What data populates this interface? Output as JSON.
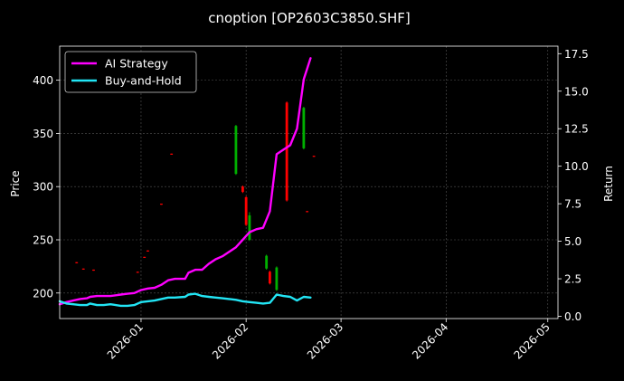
{
  "chart_data": {
    "type": "line",
    "title": "cnoption [OP2603C3850.SHF]",
    "ylabel_left": "Price",
    "ylabel_right": "Return",
    "x_ticks": [
      "2026-01",
      "2026-02",
      "2026-03",
      "2026-04",
      "2026-05"
    ],
    "x_tick_dates": [
      "2026-01-01",
      "2026-02-01",
      "2026-03-01",
      "2026-04-01",
      "2026-05-01"
    ],
    "xlim": [
      "2025-12-08",
      "2026-05-04"
    ],
    "ylim_left": [
      176,
      432
    ],
    "yticks_left": [
      200,
      250,
      300,
      350,
      400
    ],
    "ylim_right": [
      -0.15,
      18
    ],
    "yticks_right": [
      "0.0",
      "2.5",
      "5.0",
      "7.5",
      "10.0",
      "12.5",
      "15.0",
      "17.5"
    ],
    "ytick_values_right": [
      0,
      2.5,
      5,
      7.5,
      10,
      12.5,
      15,
      17.5
    ],
    "grid": true,
    "legend_position": "top-left",
    "series": [
      {
        "name": "AI Strategy",
        "color": "#ff00ff",
        "axis": "right",
        "points": [
          [
            "2025-12-08",
            0.8
          ],
          [
            "2025-12-10",
            0.95
          ],
          [
            "2025-12-12",
            1.05
          ],
          [
            "2025-12-14",
            1.15
          ],
          [
            "2025-12-16",
            1.2
          ],
          [
            "2025-12-17",
            1.3
          ],
          [
            "2025-12-19",
            1.35
          ],
          [
            "2025-12-21",
            1.35
          ],
          [
            "2025-12-23",
            1.35
          ],
          [
            "2025-12-26",
            1.45
          ],
          [
            "2025-12-28",
            1.5
          ],
          [
            "2025-12-30",
            1.55
          ],
          [
            "2026-01-01",
            1.75
          ],
          [
            "2026-01-03",
            1.85
          ],
          [
            "2026-01-05",
            1.9
          ],
          [
            "2026-01-07",
            2.1
          ],
          [
            "2026-01-09",
            2.4
          ],
          [
            "2026-01-11",
            2.5
          ],
          [
            "2026-01-14",
            2.5
          ],
          [
            "2026-01-15",
            2.9
          ],
          [
            "2026-01-17",
            3.1
          ],
          [
            "2026-01-19",
            3.1
          ],
          [
            "2026-01-21",
            3.5
          ],
          [
            "2026-01-23",
            3.8
          ],
          [
            "2026-01-25",
            4.0
          ],
          [
            "2026-01-27",
            4.3
          ],
          [
            "2026-01-29",
            4.6
          ],
          [
            "2026-01-31",
            5.1
          ],
          [
            "2026-02-02",
            5.6
          ],
          [
            "2026-02-04",
            5.8
          ],
          [
            "2026-02-06",
            5.9
          ],
          [
            "2026-02-08",
            7.0
          ],
          [
            "2026-02-10",
            10.8
          ],
          [
            "2026-02-12",
            11.1
          ],
          [
            "2026-02-14",
            11.4
          ],
          [
            "2026-02-16",
            12.5
          ],
          [
            "2026-02-18",
            15.8
          ],
          [
            "2026-02-20",
            17.2
          ]
        ]
      },
      {
        "name": "Buy-and-Hold",
        "color": "#22e5f5",
        "axis": "right",
        "points": [
          [
            "2025-12-08",
            1.0
          ],
          [
            "2025-12-10",
            0.85
          ],
          [
            "2025-12-12",
            0.8
          ],
          [
            "2025-12-14",
            0.75
          ],
          [
            "2025-12-16",
            0.75
          ],
          [
            "2025-12-17",
            0.85
          ],
          [
            "2025-12-19",
            0.75
          ],
          [
            "2025-12-21",
            0.75
          ],
          [
            "2025-12-23",
            0.8
          ],
          [
            "2025-12-26",
            0.7
          ],
          [
            "2025-12-28",
            0.7
          ],
          [
            "2025-12-30",
            0.75
          ],
          [
            "2026-01-01",
            0.95
          ],
          [
            "2026-01-03",
            1.0
          ],
          [
            "2026-01-05",
            1.05
          ],
          [
            "2026-01-07",
            1.15
          ],
          [
            "2026-01-09",
            1.25
          ],
          [
            "2026-01-11",
            1.25
          ],
          [
            "2026-01-14",
            1.3
          ],
          [
            "2026-01-15",
            1.45
          ],
          [
            "2026-01-17",
            1.5
          ],
          [
            "2026-01-19",
            1.35
          ],
          [
            "2026-01-21",
            1.3
          ],
          [
            "2026-01-23",
            1.25
          ],
          [
            "2026-01-25",
            1.2
          ],
          [
            "2026-01-27",
            1.15
          ],
          [
            "2026-01-29",
            1.1
          ],
          [
            "2026-01-31",
            1.0
          ],
          [
            "2026-02-02",
            0.95
          ],
          [
            "2026-02-04",
            0.9
          ],
          [
            "2026-02-06",
            0.85
          ],
          [
            "2026-02-08",
            0.9
          ],
          [
            "2026-02-10",
            1.45
          ],
          [
            "2026-02-12",
            1.35
          ],
          [
            "2026-02-14",
            1.3
          ],
          [
            "2026-02-16",
            1.05
          ],
          [
            "2026-02-18",
            1.3
          ],
          [
            "2026-02-20",
            1.25
          ]
        ]
      }
    ],
    "candles": [
      {
        "date": "2025-12-13",
        "open": 229,
        "close": 228,
        "high": 229,
        "low": 228
      },
      {
        "date": "2025-12-15",
        "open": 223,
        "close": 222,
        "high": 223,
        "low": 222
      },
      {
        "date": "2025-12-18",
        "open": 222,
        "close": 221,
        "high": 222,
        "low": 221
      },
      {
        "date": "2025-12-31",
        "open": 220,
        "close": 219,
        "high": 220,
        "low": 219
      },
      {
        "date": "2026-01-02",
        "open": 234,
        "close": 233,
        "high": 234,
        "low": 233
      },
      {
        "date": "2026-01-03",
        "open": 240,
        "close": 239,
        "high": 240,
        "low": 239
      },
      {
        "date": "2026-01-07",
        "open": 284,
        "close": 283,
        "high": 284,
        "low": 283
      },
      {
        "date": "2026-01-10",
        "open": 331,
        "close": 330,
        "high": 331,
        "low": 330
      },
      {
        "date": "2026-01-29",
        "open": 312,
        "close": 357,
        "high": 358,
        "low": 311
      },
      {
        "date": "2026-01-31",
        "open": 300,
        "close": 295,
        "high": 301,
        "low": 294
      },
      {
        "date": "2026-02-01",
        "open": 290,
        "close": 264,
        "high": 291,
        "low": 263
      },
      {
        "date": "2026-02-02",
        "open": 250,
        "close": 273,
        "high": 276,
        "low": 249
      },
      {
        "date": "2026-02-07",
        "open": 223,
        "close": 235,
        "high": 236,
        "low": 222
      },
      {
        "date": "2026-02-08",
        "open": 220,
        "close": 209,
        "high": 221,
        "low": 208
      },
      {
        "date": "2026-02-10",
        "open": 203,
        "close": 224,
        "high": 225,
        "low": 202
      },
      {
        "date": "2026-02-13",
        "open": 379,
        "close": 287,
        "high": 380,
        "low": 286
      },
      {
        "date": "2026-02-18",
        "open": 336,
        "close": 374,
        "high": 375,
        "low": 335
      },
      {
        "date": "2026-02-19",
        "open": 277,
        "close": 276,
        "high": 277,
        "low": 276
      },
      {
        "date": "2026-02-21",
        "open": 329,
        "close": 328,
        "high": 329,
        "low": 328
      }
    ]
  }
}
